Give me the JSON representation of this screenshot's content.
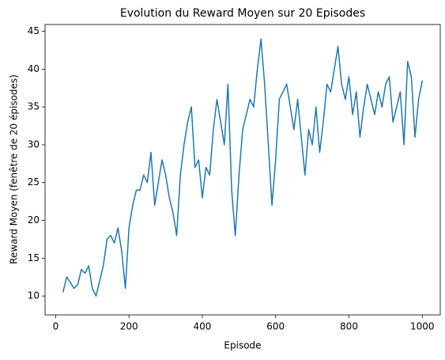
{
  "chart_data": {
    "type": "line",
    "title": "Evolution du Reward Moyen sur 20 Episodes",
    "x_label": "Episode",
    "y_label": "Reward Moyen (fenêtre de 20 épisodes)",
    "x": [
      20,
      30,
      40,
      50,
      60,
      70,
      80,
      90,
      100,
      110,
      120,
      130,
      140,
      150,
      160,
      170,
      180,
      190,
      200,
      210,
      220,
      230,
      240,
      250,
      260,
      270,
      280,
      290,
      300,
      310,
      320,
      330,
      340,
      350,
      360,
      370,
      380,
      390,
      400,
      410,
      420,
      430,
      440,
      450,
      460,
      470,
      480,
      490,
      500,
      510,
      520,
      530,
      540,
      550,
      560,
      570,
      580,
      590,
      600,
      610,
      620,
      630,
      640,
      650,
      660,
      670,
      680,
      690,
      700,
      710,
      720,
      730,
      740,
      750,
      760,
      770,
      780,
      790,
      800,
      810,
      820,
      830,
      840,
      850,
      860,
      870,
      880,
      890,
      900,
      910,
      920,
      930,
      940,
      950,
      960,
      970,
      980,
      990,
      1000
    ],
    "series": [
      {
        "name": "Reward Moyen",
        "color": "#1f77b4",
        "values": [
          10.5,
          12.5,
          11.8,
          11,
          11.5,
          13.5,
          13,
          14,
          11,
          10,
          12,
          14,
          17.5,
          18,
          17,
          19,
          16,
          11,
          19,
          22,
          24,
          24,
          26,
          25,
          29,
          22,
          25,
          28,
          26,
          23,
          21,
          18,
          26,
          30,
          33,
          35,
          27,
          28,
          23,
          27,
          26,
          32,
          36,
          33,
          30,
          38,
          24,
          18,
          26,
          32,
          34,
          36,
          35,
          40,
          44,
          38,
          30,
          22,
          28,
          36,
          37,
          38,
          35,
          32,
          36,
          31,
          26,
          32,
          30,
          35,
          29,
          33,
          38,
          37,
          40,
          43,
          38,
          36,
          39,
          34,
          37,
          31,
          35,
          38,
          36,
          34,
          37,
          35,
          38,
          39,
          33,
          35,
          37,
          30,
          41,
          39,
          31,
          36,
          38.5
        ]
      }
    ],
    "xlim": [
      -29,
      1049
    ],
    "ylim": [
      7.5,
      45.9
    ],
    "xticks": [
      0,
      200,
      400,
      600,
      800,
      1000
    ],
    "yticks": [
      10,
      15,
      20,
      25,
      30,
      35,
      40,
      45
    ]
  }
}
